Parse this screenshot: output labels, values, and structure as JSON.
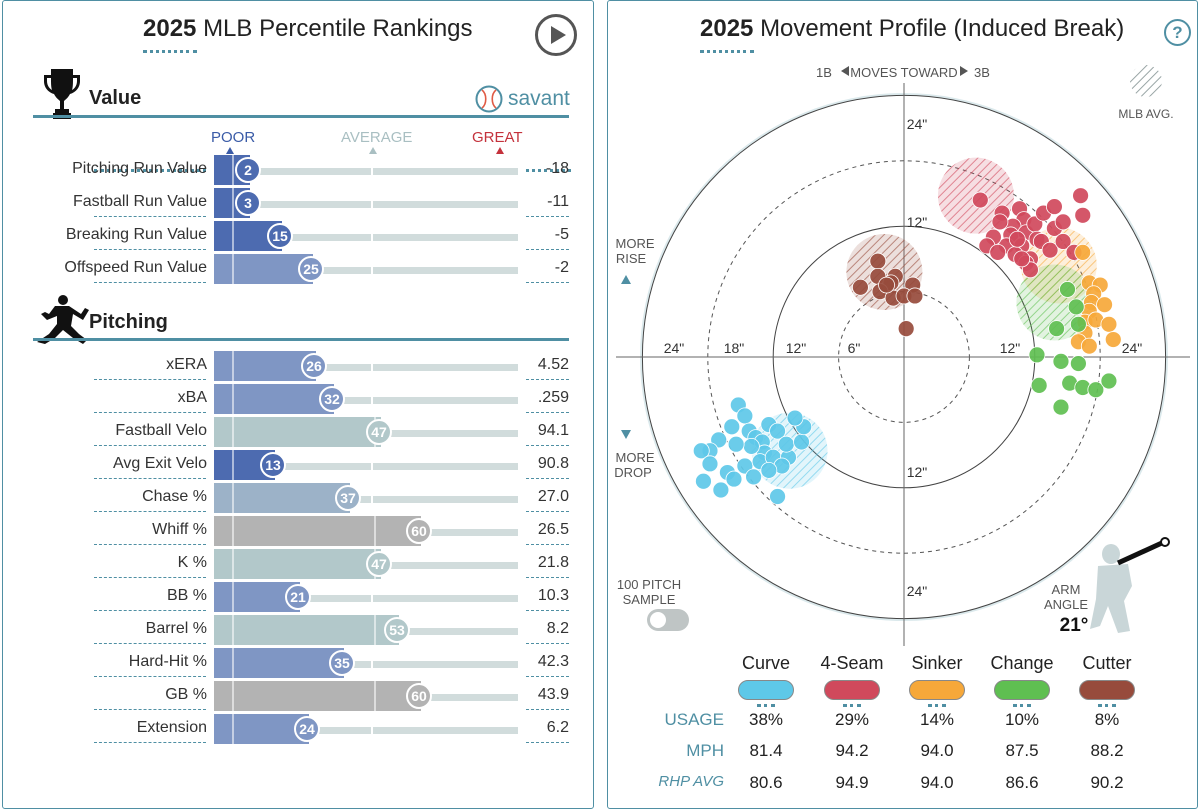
{
  "left": {
    "title_year": "2025",
    "title_text": "MLB Percentile Rankings",
    "play_icon": "play-icon",
    "value_section": {
      "heading": "Value",
      "icon": "trophy-icon",
      "brand": "savant",
      "scale": {
        "poor": "POOR",
        "average": "AVERAGE",
        "great": "GREAT"
      },
      "rows": [
        {
          "label": "Pitching Run Value",
          "percentile": 2,
          "value": "-18"
        },
        {
          "label": "Fastball Run Value",
          "percentile": 3,
          "value": "-11"
        },
        {
          "label": "Breaking Run Value",
          "percentile": 15,
          "value": "-5"
        },
        {
          "label": "Offspeed Run Value",
          "percentile": 25,
          "value": "-2"
        }
      ]
    },
    "pitching_section": {
      "heading": "Pitching",
      "icon": "pitcher-icon",
      "rows": [
        {
          "label": "xERA",
          "percentile": 26,
          "value": "4.52"
        },
        {
          "label": "xBA",
          "percentile": 32,
          "value": ".259"
        },
        {
          "label": "Fastball Velo",
          "percentile": 47,
          "value": "94.1"
        },
        {
          "label": "Avg Exit Velo",
          "percentile": 13,
          "value": "90.8"
        },
        {
          "label": "Chase %",
          "percentile": 37,
          "value": "27.0"
        },
        {
          "label": "Whiff %",
          "percentile": 60,
          "value": "26.5"
        },
        {
          "label": "K %",
          "percentile": 47,
          "value": "21.8"
        },
        {
          "label": "BB %",
          "percentile": 21,
          "value": "10.3"
        },
        {
          "label": "Barrel %",
          "percentile": 53,
          "value": "8.2"
        },
        {
          "label": "Hard-Hit %",
          "percentile": 35,
          "value": "42.3"
        },
        {
          "label": "GB %",
          "percentile": 60,
          "value": "43.9"
        },
        {
          "label": "Extension",
          "percentile": 24,
          "value": "6.2"
        }
      ]
    },
    "colors": {
      "poor": "#3a5ba7",
      "average": "#a9bfc2",
      "great": "#c4323c",
      "neutral": "#b3b3b3",
      "accent": "#4f8fa3"
    }
  },
  "right": {
    "title_year": "2025",
    "title_text": "Movement Profile (Induced Break)",
    "help": "?",
    "direction_top": {
      "left": "1B",
      "middle": "MOVES TOWARD",
      "right": "3B"
    },
    "mlb_avg_label": "MLB AVG.",
    "more_rise": [
      "MORE",
      "RISE"
    ],
    "more_drop": [
      "MORE",
      "DROP"
    ],
    "axis_labels": {
      "top": "24\"",
      "right": "24\"",
      "left": [
        "24\"",
        "18\"",
        "12\"",
        "6\""
      ],
      "inner_top": "12\"",
      "inner_bottom": "12\"",
      "right_inner": "12\"",
      "bottom": "24\""
    },
    "sample": [
      "100 PITCH",
      "SAMPLE"
    ],
    "arm_angle": {
      "label": [
        "ARM",
        "ANGLE"
      ],
      "value": "21°"
    },
    "legend_row_labels": {
      "usage": "USAGE",
      "mph": "MPH",
      "rhp": "RHP AVG"
    },
    "pitches": [
      {
        "name": "Curve",
        "color": "#5ec8e8",
        "usage": "38%",
        "mph": "81.4",
        "rhp_avg": "80.6"
      },
      {
        "name": "4-Seam",
        "color": "#d0495c",
        "usage": "29%",
        "mph": "94.2",
        "rhp_avg": "94.9"
      },
      {
        "name": "Sinker",
        "color": "#f6a83a",
        "usage": "14%",
        "mph": "94.0",
        "rhp_avg": "94.0"
      },
      {
        "name": "Change",
        "color": "#5fbf51",
        "usage": "10%",
        "mph": "87.5",
        "rhp_avg": "86.6"
      },
      {
        "name": "Cutter",
        "color": "#974b3c",
        "usage": "8%",
        "mph": "88.2",
        "rhp_avg": "90.2"
      }
    ],
    "chart_data": {
      "type": "scatter",
      "xlabel": "",
      "ylabel": "",
      "xlim": [
        -26,
        26
      ],
      "ylim": [
        -26,
        26
      ],
      "series": [
        {
          "name": "Curve",
          "color": "#5ec8e8",
          "mlb_avg": [
            -10.5,
            -8.6
          ],
          "points": [
            [
              -15.2,
              -4.4
            ],
            [
              -14.6,
              -5.4
            ],
            [
              -15.8,
              -6.4
            ],
            [
              -14.2,
              -6.8
            ],
            [
              -13.6,
              -7.4
            ],
            [
              -12.4,
              -6.2
            ],
            [
              -13.0,
              -7.8
            ],
            [
              -11.6,
              -6.8
            ],
            [
              -12.8,
              -8.8
            ],
            [
              -14.0,
              -8.2
            ],
            [
              -15.4,
              -8.0
            ],
            [
              -17.0,
              -7.6
            ],
            [
              -17.8,
              -8.6
            ],
            [
              -18.6,
              -8.6
            ],
            [
              -17.8,
              -9.8
            ],
            [
              -16.2,
              -10.6
            ],
            [
              -14.6,
              -10.0
            ],
            [
              -13.2,
              -9.6
            ],
            [
              -12.0,
              -9.2
            ],
            [
              -10.6,
              -9.2
            ],
            [
              -10.8,
              -8.0
            ],
            [
              -11.2,
              -10.0
            ],
            [
              -12.4,
              -10.4
            ],
            [
              -13.8,
              -11.0
            ],
            [
              -15.6,
              -11.2
            ],
            [
              -16.8,
              -12.2
            ],
            [
              -18.4,
              -11.4
            ],
            [
              -11.6,
              -12.8
            ],
            [
              -9.4,
              -7.8
            ],
            [
              -9.2,
              -6.4
            ],
            [
              -10.0,
              -5.6
            ]
          ]
        },
        {
          "name": "4-Seam",
          "color": "#d0495c",
          "mlb_avg": [
            6.6,
            14.8
          ],
          "points": [
            [
              7.0,
              14.4
            ],
            [
              9.0,
              13.2
            ],
            [
              10.6,
              13.6
            ],
            [
              11.0,
              12.6
            ],
            [
              10.0,
              12.0
            ],
            [
              8.8,
              12.4
            ],
            [
              9.8,
              11.2
            ],
            [
              11.2,
              11.4
            ],
            [
              12.0,
              12.2
            ],
            [
              12.2,
              10.8
            ],
            [
              10.8,
              10.2
            ],
            [
              9.4,
              10.2
            ],
            [
              8.2,
              11.0
            ],
            [
              7.6,
              10.2
            ],
            [
              8.6,
              9.6
            ],
            [
              10.2,
              9.4
            ],
            [
              11.6,
              9.0
            ],
            [
              12.6,
              10.6
            ],
            [
              13.4,
              9.8
            ],
            [
              13.8,
              11.8
            ],
            [
              14.6,
              10.6
            ],
            [
              12.8,
              13.2
            ],
            [
              13.8,
              13.8
            ],
            [
              14.6,
              12.4
            ],
            [
              16.2,
              14.8
            ],
            [
              16.4,
              13.0
            ],
            [
              15.6,
              9.6
            ],
            [
              11.2,
              8.6
            ],
            [
              11.6,
              8.0
            ],
            [
              10.8,
              9.0
            ],
            [
              10.4,
              10.8
            ]
          ]
        },
        {
          "name": "Sinker",
          "color": "#f6a83a",
          "mlb_avg": [
            14.2,
            8.4
          ],
          "points": [
            [
              16.4,
              9.6
            ],
            [
              17.0,
              6.8
            ],
            [
              18.0,
              6.6
            ],
            [
              17.4,
              5.8
            ],
            [
              17.2,
              5.0
            ],
            [
              18.4,
              4.8
            ],
            [
              17.0,
              4.2
            ],
            [
              16.6,
              3.2
            ],
            [
              17.6,
              3.4
            ],
            [
              18.8,
              3.0
            ],
            [
              16.6,
              2.2
            ],
            [
              16.0,
              1.4
            ],
            [
              17.0,
              1.0
            ],
            [
              19.2,
              1.6
            ]
          ]
        },
        {
          "name": "Change",
          "color": "#5fbf51",
          "mlb_avg": [
            13.8,
            5.0
          ],
          "points": [
            [
              15.0,
              6.2
            ],
            [
              15.8,
              4.6
            ],
            [
              16.0,
              3.0
            ],
            [
              14.0,
              2.6
            ],
            [
              12.2,
              0.2
            ],
            [
              14.4,
              -0.4
            ],
            [
              16.0,
              -0.6
            ],
            [
              12.4,
              -2.6
            ],
            [
              15.2,
              -2.4
            ],
            [
              16.4,
              -2.8
            ],
            [
              17.6,
              -3.0
            ],
            [
              18.8,
              -2.2
            ],
            [
              14.4,
              -4.6
            ]
          ]
        },
        {
          "name": "Cutter",
          "color": "#974b3c",
          "mlb_avg": [
            -1.8,
            7.8
          ],
          "points": [
            [
              -2.4,
              8.8
            ],
            [
              -2.4,
              7.4
            ],
            [
              -0.8,
              7.4
            ],
            [
              -1.2,
              6.8
            ],
            [
              0.8,
              6.6
            ],
            [
              -2.2,
              6.0
            ],
            [
              -1.0,
              5.4
            ],
            [
              0.0,
              5.6
            ],
            [
              1.0,
              5.6
            ],
            [
              0.2,
              2.6
            ],
            [
              -4.0,
              6.4
            ],
            [
              -1.6,
              6.6
            ]
          ]
        }
      ]
    }
  }
}
